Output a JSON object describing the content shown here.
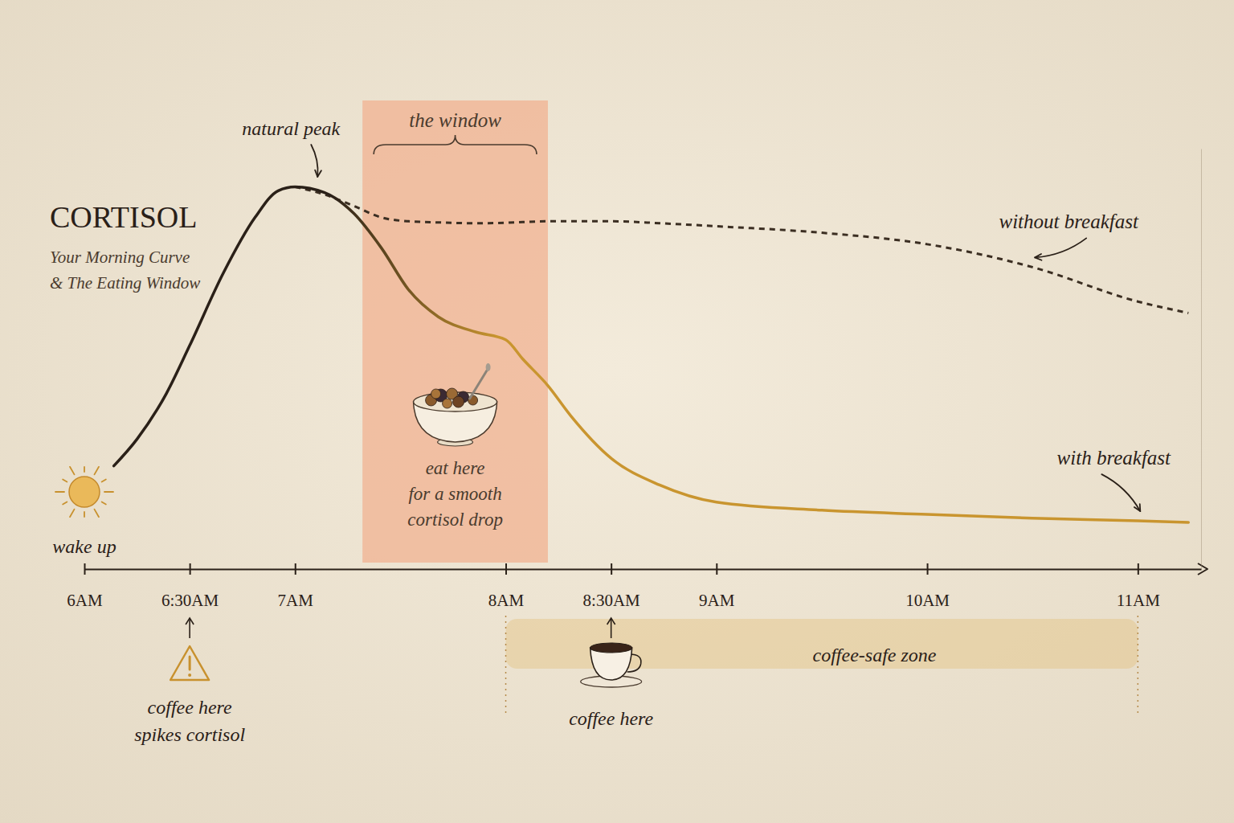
{
  "chart_data": {
    "type": "line",
    "title": "CORTISOL",
    "subtitle": "Your Morning Curve\n& The Eating Window",
    "x": [
      6.14,
      6.25,
      6.39,
      6.5,
      6.66,
      6.81,
      6.92,
      7.0,
      7.14,
      7.28,
      7.41,
      7.54,
      7.68,
      7.86,
      8.0,
      8.08,
      8.2,
      8.31,
      8.5,
      8.73,
      9.0,
      9.5,
      10.0,
      10.5,
      11.0,
      11.24
    ],
    "xlim": [
      6,
      11.3
    ],
    "xticks": [
      {
        "value": 6,
        "label": "6AM"
      },
      {
        "value": 6.5,
        "label": "6:30AM"
      },
      {
        "value": 7,
        "label": "7AM"
      },
      {
        "value": 8,
        "label": "8AM"
      },
      {
        "value": 8.5,
        "label": "8:30AM"
      },
      {
        "value": 9,
        "label": "9AM"
      },
      {
        "value": 10,
        "label": "10AM"
      },
      {
        "value": 11,
        "label": "11AM"
      }
    ],
    "ylim": [
      0,
      110
    ],
    "tick_labels": "x",
    "grid": false,
    "series": [
      {
        "name": "without breakfast",
        "color": "#3b2e22",
        "line_style": "dashed",
        "values": [
          null,
          null,
          null,
          null,
          null,
          null,
          null,
          100,
          98,
          95,
          92,
          91,
          90.7,
          90.5,
          90.6,
          90.8,
          91,
          91,
          91,
          90.5,
          89.7,
          88,
          85,
          79,
          70,
          67
        ]
      },
      {
        "name": "with breakfast",
        "color": "#c9952f",
        "line_style": "solid",
        "values": [
          27,
          34,
          46,
          58.5,
          77.5,
          92,
          99,
          100,
          98.5,
          93,
          84,
          73,
          66,
          62,
          60,
          55,
          48,
          40,
          29,
          22,
          17.5,
          15.4,
          14.3,
          13.3,
          12.6,
          12.2
        ]
      }
    ],
    "annotations": {
      "wake_up": {
        "text": "wake up",
        "x": 6
      },
      "peak": {
        "text": "natural peak",
        "x": 7
      },
      "window": {
        "label": "the window",
        "note": "eat here\nfor a smooth\ncortisol drop",
        "start": 7.32,
        "end": 8.2
      },
      "coffee_warning": {
        "text": "coffee here\nspikes cortisol",
        "x": 6.5
      },
      "coffee_ok": {
        "text": "coffee here",
        "x": 8.5
      },
      "coffee_safe_zone": {
        "label": "coffee-safe zone",
        "start": 8,
        "end": 11
      }
    }
  }
}
